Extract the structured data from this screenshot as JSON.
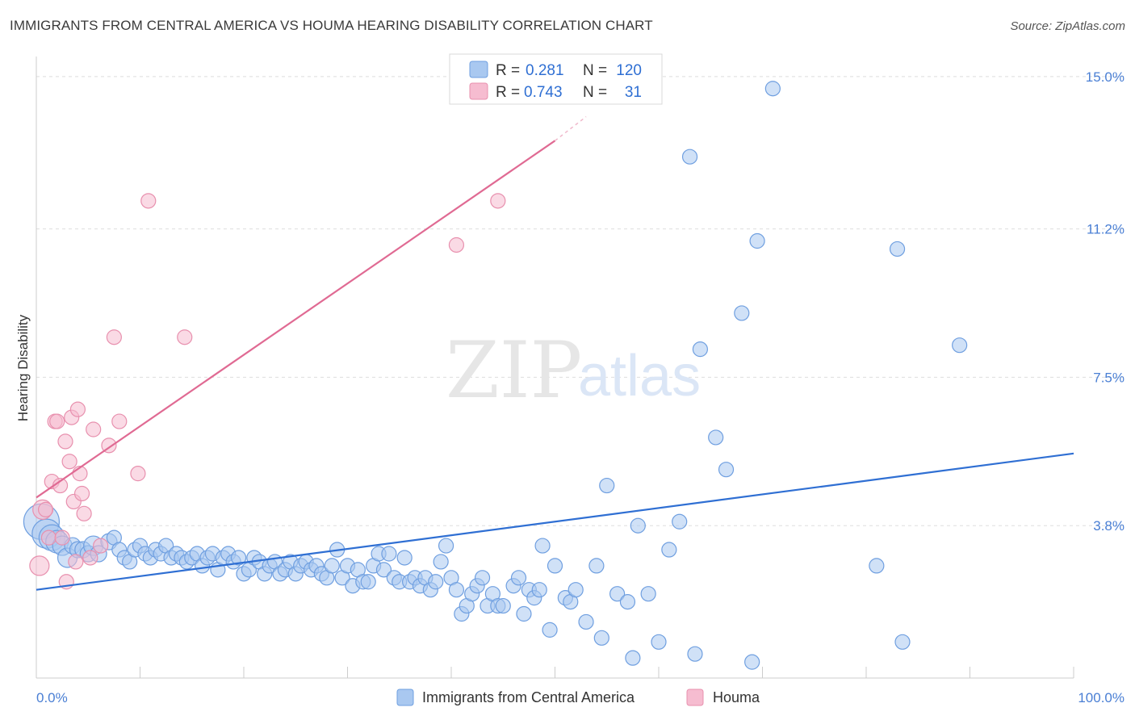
{
  "title": "IMMIGRANTS FROM CENTRAL AMERICA VS HOUMA HEARING DISABILITY CORRELATION CHART",
  "source": "Source: ZipAtlas.com",
  "watermark": {
    "zip": "ZIP",
    "atlas": "atlas"
  },
  "colors": {
    "blue_fill": "#a9c8f0",
    "blue_stroke": "#6f9fe0",
    "blue_line": "#2f6fd3",
    "pink_fill": "#f6bcd0",
    "pink_stroke": "#e890ae",
    "pink_line": "#e06a93",
    "grid": "#dddddd",
    "axis_text": "#4a7fd4"
  },
  "legend_box": {
    "rows": [
      {
        "r_label": "R =",
        "r_value": "0.281",
        "n_label": "N =",
        "n_value": "120"
      },
      {
        "r_label": "R =",
        "r_value": "0.743",
        "n_label": "N =",
        "n_value": "31"
      }
    ]
  },
  "chart_data": {
    "type": "scatter",
    "title": "IMMIGRANTS FROM CENTRAL AMERICA VS HOUMA HEARING DISABILITY CORRELATION CHART",
    "xlabel": "",
    "ylabel": "Hearing Disability",
    "xlim": [
      0,
      100
    ],
    "ylim": [
      0,
      15.5
    ],
    "x_tick_labels": [
      "0.0%",
      "100.0%"
    ],
    "y_ticks": [
      3.8,
      7.5,
      11.2,
      15.0
    ],
    "y_tick_labels": [
      "3.8%",
      "7.5%",
      "11.2%",
      "15.0%"
    ],
    "grid": true,
    "legend_position": "top-center",
    "series": [
      {
        "name": "Immigrants from Central America",
        "color": "#a9c8f0",
        "trendline": {
          "x": [
            0,
            100
          ],
          "y": [
            2.2,
            5.6
          ]
        },
        "points": [
          [
            0.5,
            3.9,
            22
          ],
          [
            1.0,
            3.6,
            18
          ],
          [
            1.5,
            3.5,
            16
          ],
          [
            2.0,
            3.4,
            14
          ],
          [
            2.5,
            3.3,
            12
          ],
          [
            3.0,
            3.0,
            12
          ],
          [
            3.5,
            3.3,
            10
          ],
          [
            4.0,
            3.2,
            10
          ],
          [
            4.5,
            3.2,
            10
          ],
          [
            5.0,
            3.1,
            10
          ],
          [
            5.5,
            3.3,
            12
          ],
          [
            6.0,
            3.1,
            10
          ],
          [
            7.0,
            3.4,
            10
          ],
          [
            7.5,
            3.5,
            9
          ],
          [
            8.0,
            3.2,
            9
          ],
          [
            8.5,
            3.0,
            9
          ],
          [
            9.0,
            2.9,
            9
          ],
          [
            9.5,
            3.2,
            9
          ],
          [
            10.0,
            3.3,
            9
          ],
          [
            10.5,
            3.1,
            9
          ],
          [
            11.0,
            3.0,
            9
          ],
          [
            11.5,
            3.2,
            9
          ],
          [
            12.0,
            3.1,
            9
          ],
          [
            12.5,
            3.3,
            9
          ],
          [
            13.0,
            3.0,
            9
          ],
          [
            13.5,
            3.1,
            9
          ],
          [
            14.0,
            3.0,
            9
          ],
          [
            14.5,
            2.9,
            9
          ],
          [
            15.0,
            3.0,
            9
          ],
          [
            15.5,
            3.1,
            9
          ],
          [
            16.0,
            2.8,
            9
          ],
          [
            16.5,
            3.0,
            9
          ],
          [
            17.0,
            3.1,
            9
          ],
          [
            17.5,
            2.7,
            9
          ],
          [
            18.0,
            3.0,
            9
          ],
          [
            18.5,
            3.1,
            9
          ],
          [
            19.0,
            2.9,
            9
          ],
          [
            19.5,
            3.0,
            9
          ],
          [
            20.0,
            2.6,
            9
          ],
          [
            20.5,
            2.7,
            9
          ],
          [
            21.0,
            3.0,
            9
          ],
          [
            21.5,
            2.9,
            9
          ],
          [
            22.0,
            2.6,
            9
          ],
          [
            22.5,
            2.8,
            9
          ],
          [
            23.0,
            2.9,
            9
          ],
          [
            23.5,
            2.6,
            9
          ],
          [
            24.0,
            2.7,
            9
          ],
          [
            24.5,
            2.9,
            9
          ],
          [
            25.0,
            2.6,
            9
          ],
          [
            25.5,
            2.8,
            9
          ],
          [
            26.0,
            2.9,
            9
          ],
          [
            26.5,
            2.7,
            9
          ],
          [
            27.0,
            2.8,
            9
          ],
          [
            27.5,
            2.6,
            9
          ],
          [
            28.0,
            2.5,
            9
          ],
          [
            28.5,
            2.8,
            9
          ],
          [
            29.0,
            3.2,
            9
          ],
          [
            29.5,
            2.5,
            9
          ],
          [
            30.0,
            2.8,
            9
          ],
          [
            30.5,
            2.3,
            9
          ],
          [
            31.0,
            2.7,
            9
          ],
          [
            31.5,
            2.4,
            9
          ],
          [
            32.0,
            2.4,
            9
          ],
          [
            32.5,
            2.8,
            9
          ],
          [
            33.0,
            3.1,
            9
          ],
          [
            33.5,
            2.7,
            9
          ],
          [
            34.0,
            3.1,
            9
          ],
          [
            34.5,
            2.5,
            9
          ],
          [
            35.0,
            2.4,
            9
          ],
          [
            35.5,
            3.0,
            9
          ],
          [
            36.0,
            2.4,
            9
          ],
          [
            36.5,
            2.5,
            9
          ],
          [
            37.0,
            2.3,
            9
          ],
          [
            37.5,
            2.5,
            9
          ],
          [
            38.0,
            2.2,
            9
          ],
          [
            38.5,
            2.4,
            9
          ],
          [
            39.0,
            2.9,
            9
          ],
          [
            39.5,
            3.3,
            9
          ],
          [
            40.0,
            2.5,
            9
          ],
          [
            40.5,
            2.2,
            9
          ],
          [
            41.0,
            1.6,
            9
          ],
          [
            41.5,
            1.8,
            9
          ],
          [
            42.0,
            2.1,
            9
          ],
          [
            42.5,
            2.3,
            9
          ],
          [
            43.0,
            2.5,
            9
          ],
          [
            43.5,
            1.8,
            9
          ],
          [
            44.0,
            2.1,
            9
          ],
          [
            44.5,
            1.8,
            9
          ],
          [
            45.0,
            1.8,
            9
          ],
          [
            46.0,
            2.3,
            9
          ],
          [
            46.5,
            2.5,
            9
          ],
          [
            47.0,
            1.6,
            9
          ],
          [
            47.5,
            2.2,
            9
          ],
          [
            48.0,
            2.0,
            9
          ],
          [
            48.5,
            2.2,
            9
          ],
          [
            48.8,
            3.3,
            9
          ],
          [
            49.5,
            1.2,
            9
          ],
          [
            50.0,
            2.8,
            9
          ],
          [
            51.0,
            2.0,
            9
          ],
          [
            51.5,
            1.9,
            9
          ],
          [
            52.0,
            2.2,
            9
          ],
          [
            53.0,
            1.4,
            9
          ],
          [
            54.0,
            2.8,
            9
          ],
          [
            54.5,
            1.0,
            9
          ],
          [
            55.0,
            4.8,
            9
          ],
          [
            56.0,
            2.1,
            9
          ],
          [
            57.0,
            1.9,
            9
          ],
          [
            57.5,
            0.5,
            9
          ],
          [
            58.0,
            3.8,
            9
          ],
          [
            59.0,
            2.1,
            9
          ],
          [
            60.0,
            0.9,
            9
          ],
          [
            61.0,
            3.2,
            9
          ],
          [
            62.0,
            3.9,
            9
          ],
          [
            63.0,
            13.0,
            9
          ],
          [
            63.5,
            0.6,
            9
          ],
          [
            64.0,
            8.2,
            9
          ],
          [
            65.5,
            6.0,
            9
          ],
          [
            66.5,
            5.2,
            9
          ],
          [
            68.0,
            9.1,
            9
          ],
          [
            69.0,
            0.4,
            9
          ],
          [
            69.5,
            10.9,
            9
          ],
          [
            71.0,
            14.7,
            9
          ],
          [
            81.0,
            2.8,
            9
          ],
          [
            83.0,
            10.7,
            9
          ],
          [
            83.5,
            0.9,
            9
          ],
          [
            89.0,
            8.3,
            9
          ]
        ]
      },
      {
        "name": "Houma",
        "color": "#f6bcd0",
        "trendline": {
          "x": [
            0,
            50
          ],
          "y": [
            4.5,
            13.4
          ],
          "dashed_to": [
            53,
            14.0
          ]
        },
        "points": [
          [
            0.3,
            2.8,
            12
          ],
          [
            0.6,
            4.2,
            12
          ],
          [
            0.9,
            4.2,
            9
          ],
          [
            1.2,
            3.5,
            9
          ],
          [
            1.5,
            4.9,
            9
          ],
          [
            1.8,
            6.4,
            9
          ],
          [
            2.0,
            6.4,
            9
          ],
          [
            2.3,
            4.8,
            9
          ],
          [
            2.5,
            3.5,
            9
          ],
          [
            2.8,
            5.9,
            9
          ],
          [
            2.9,
            2.4,
            9
          ],
          [
            3.2,
            5.4,
            9
          ],
          [
            3.4,
            6.5,
            9
          ],
          [
            3.6,
            4.4,
            9
          ],
          [
            3.8,
            2.9,
            9
          ],
          [
            4.0,
            6.7,
            9
          ],
          [
            4.2,
            5.1,
            9
          ],
          [
            4.4,
            4.6,
            9
          ],
          [
            4.6,
            4.1,
            9
          ],
          [
            5.2,
            3.0,
            9
          ],
          [
            5.5,
            6.2,
            9
          ],
          [
            6.2,
            3.3,
            9
          ],
          [
            7.0,
            5.8,
            9
          ],
          [
            7.5,
            8.5,
            9
          ],
          [
            8.0,
            6.4,
            9
          ],
          [
            9.8,
            5.1,
            9
          ],
          [
            10.8,
            11.9,
            9
          ],
          [
            14.3,
            8.5,
            9
          ],
          [
            40.5,
            10.8,
            9
          ],
          [
            44.5,
            11.9,
            9
          ],
          [
            55.5,
            14.6,
            9
          ]
        ]
      }
    ]
  },
  "bottom_legend": [
    {
      "label": "Immigrants from Central America"
    },
    {
      "label": "Houma"
    }
  ]
}
